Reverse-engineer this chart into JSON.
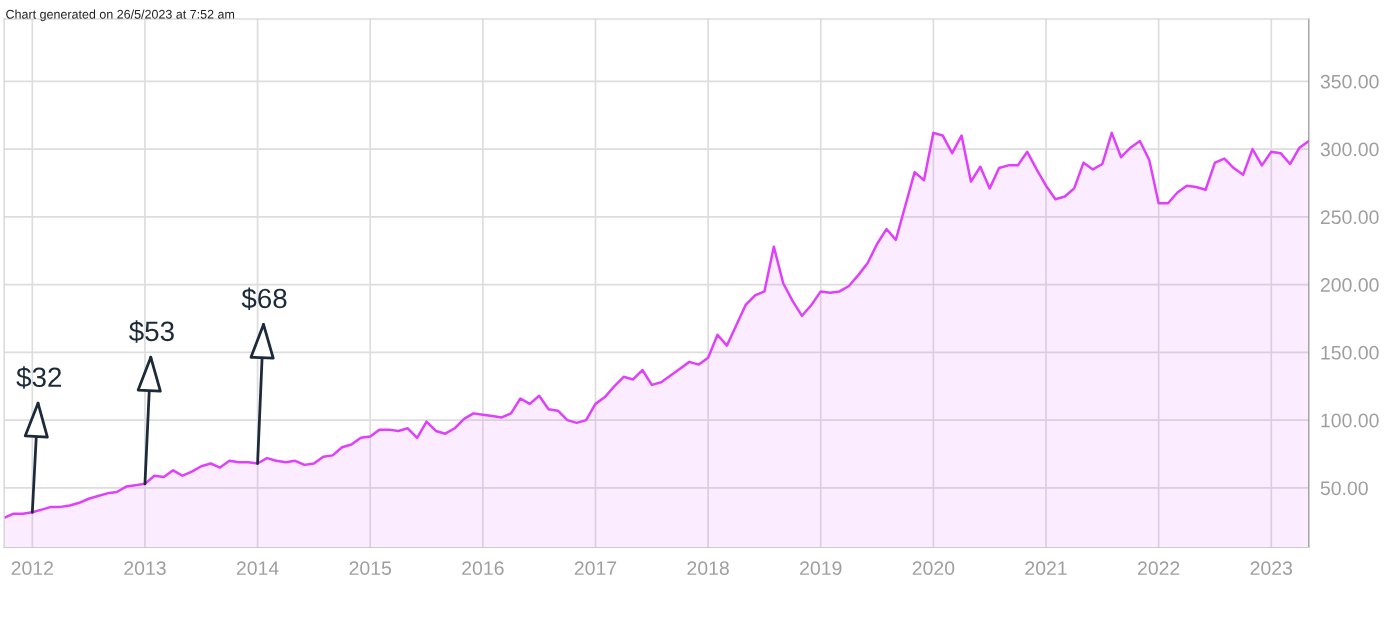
{
  "chart_data": {
    "type": "area",
    "x": [
      "2011-10",
      "2011-11",
      "2011-12",
      "2012-01",
      "2012-02",
      "2012-03",
      "2012-04",
      "2012-05",
      "2012-06",
      "2012-07",
      "2012-08",
      "2012-09",
      "2012-10",
      "2012-11",
      "2012-12",
      "2013-01",
      "2013-02",
      "2013-03",
      "2013-04",
      "2013-05",
      "2013-06",
      "2013-07",
      "2013-08",
      "2013-09",
      "2013-10",
      "2013-11",
      "2013-12",
      "2014-01",
      "2014-02",
      "2014-03",
      "2014-04",
      "2014-05",
      "2014-06",
      "2014-07",
      "2014-08",
      "2014-09",
      "2014-10",
      "2014-11",
      "2014-12",
      "2015-01",
      "2015-02",
      "2015-03",
      "2015-04",
      "2015-05",
      "2015-06",
      "2015-07",
      "2015-08",
      "2015-09",
      "2015-10",
      "2015-11",
      "2015-12",
      "2016-01",
      "2016-02",
      "2016-03",
      "2016-04",
      "2016-05",
      "2016-06",
      "2016-07",
      "2016-08",
      "2016-09",
      "2016-10",
      "2016-11",
      "2016-12",
      "2017-01",
      "2017-02",
      "2017-03",
      "2017-04",
      "2017-05",
      "2017-06",
      "2017-07",
      "2017-08",
      "2017-09",
      "2017-10",
      "2017-11",
      "2017-12",
      "2018-01",
      "2018-02",
      "2018-03",
      "2018-04",
      "2018-05",
      "2018-06",
      "2018-07",
      "2018-08",
      "2018-09",
      "2018-10",
      "2018-11",
      "2018-12",
      "2019-01",
      "2019-02",
      "2019-03",
      "2019-04",
      "2019-05",
      "2019-06",
      "2019-07",
      "2019-08",
      "2019-09",
      "2019-10",
      "2019-11",
      "2019-12",
      "2020-01",
      "2020-02",
      "2020-03",
      "2020-04",
      "2020-05",
      "2020-06",
      "2020-07",
      "2020-08",
      "2020-09",
      "2020-10",
      "2020-11",
      "2020-12",
      "2021-01",
      "2021-02",
      "2021-03",
      "2021-04",
      "2021-05",
      "2021-06",
      "2021-07",
      "2021-08",
      "2021-09",
      "2021-10",
      "2021-11",
      "2021-12",
      "2022-01",
      "2022-02",
      "2022-03",
      "2022-04",
      "2022-05",
      "2022-06",
      "2022-07",
      "2022-08",
      "2022-09",
      "2022-10",
      "2022-11",
      "2022-12",
      "2023-01",
      "2023-02",
      "2023-03",
      "2023-04",
      "2023-05"
    ],
    "series": [
      {
        "color": "#e040fb",
        "values": [
          28,
          31,
          31,
          32,
          34,
          36,
          36,
          37,
          39,
          42,
          44,
          46,
          47,
          51,
          52,
          53,
          59,
          58,
          63,
          59,
          62,
          66,
          68,
          65,
          70,
          69,
          69,
          68,
          72,
          70,
          69,
          70,
          67,
          68,
          73,
          74,
          80,
          82,
          87,
          88,
          93,
          93,
          92,
          94,
          87,
          99,
          92,
          90,
          94,
          101,
          105,
          104,
          103,
          102,
          105,
          116,
          112,
          118,
          108,
          107,
          100,
          98,
          100,
          112,
          117,
          125,
          132,
          130,
          137,
          126,
          128,
          133,
          138,
          143,
          141,
          146,
          163,
          155,
          170,
          185,
          192,
          195,
          228,
          201,
          188,
          177,
          185,
          195,
          194,
          195,
          199,
          207,
          216,
          230,
          241,
          233,
          258,
          283,
          277,
          312,
          310,
          297,
          310,
          276,
          287,
          271,
          286,
          288,
          288,
          298,
          285,
          273,
          263,
          265,
          271,
          290,
          285,
          289,
          312,
          294,
          301,
          306,
          292,
          260,
          260,
          268,
          273,
          272,
          270,
          290,
          293,
          286,
          281,
          300,
          288,
          298,
          297,
          289,
          301,
          306
        ]
      }
    ],
    "xlim": [
      "2011-10",
      "2023-05"
    ],
    "xticks": [
      {
        "value": "2012-01",
        "label": "2012"
      },
      {
        "value": "2013-01",
        "label": "2013"
      },
      {
        "value": "2014-01",
        "label": "2014"
      },
      {
        "value": "2015-01",
        "label": "2015"
      },
      {
        "value": "2016-01",
        "label": "2016"
      },
      {
        "value": "2017-01",
        "label": "2017"
      },
      {
        "value": "2018-01",
        "label": "2018"
      },
      {
        "value": "2019-01",
        "label": "2019"
      },
      {
        "value": "2020-01",
        "label": "2020"
      },
      {
        "value": "2021-01",
        "label": "2021"
      },
      {
        "value": "2022-01",
        "label": "2022"
      },
      {
        "value": "2023-01",
        "label": "2023"
      }
    ],
    "ylim": [
      6,
      396
    ],
    "yticks": [
      {
        "value": 50,
        "label": "50.00"
      },
      {
        "value": 100,
        "label": "100.00"
      },
      {
        "value": 150,
        "label": "150.00"
      },
      {
        "value": 200,
        "label": "200.00"
      },
      {
        "value": 250,
        "label": "250.00"
      },
      {
        "value": 300,
        "label": "300.00"
      },
      {
        "value": 350,
        "label": "350.00"
      }
    ],
    "grid": true,
    "annotations": [
      "Chart generated on 26/5/2023 at 7:52 am",
      {
        "text": "$32",
        "x": "2012-01",
        "y": 32
      },
      {
        "text": "$53",
        "x": "2013-01",
        "y": 53
      },
      {
        "text": "$68",
        "x": "2014-01",
        "y": 68
      }
    ]
  }
}
